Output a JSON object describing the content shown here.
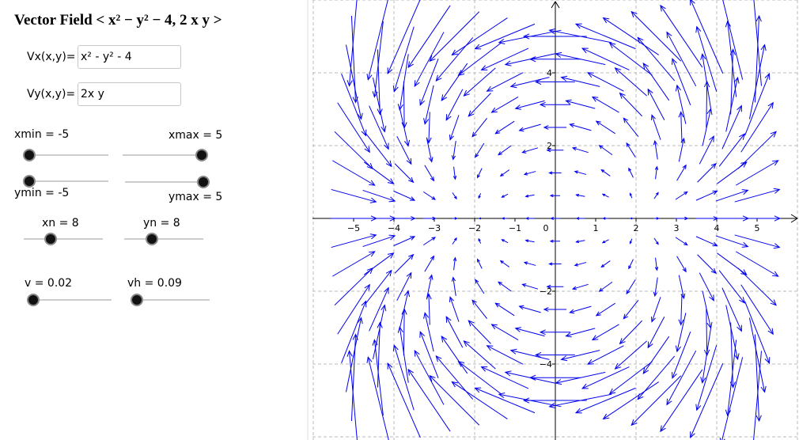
{
  "title": "Vector Field < x² − y² − 4, 2 x y >",
  "inputs": [
    {
      "label": "Vx(x,y)=",
      "value": "x² - y² - 4"
    },
    {
      "label": "Vy(x,y)=",
      "value": "2x y"
    }
  ],
  "sliders": [
    {
      "label": "xmin = -5"
    },
    {
      "label": "xmax = 5"
    },
    {
      "label": "ymin = -5"
    },
    {
      "label": "ymax = 5"
    },
    {
      "label": "xn = 8"
    },
    {
      "label": "yn = 8"
    },
    {
      "label": "v = 0.02"
    },
    {
      "label": "vh = 0.09"
    }
  ],
  "axes": {
    "x_labels": [
      "−5",
      "−4",
      "−3",
      "−2",
      "−1",
      "0",
      "1",
      "2",
      "3",
      "4",
      "5"
    ],
    "y_labels": [
      "4",
      "2",
      "−2",
      "−4"
    ]
  }
}
